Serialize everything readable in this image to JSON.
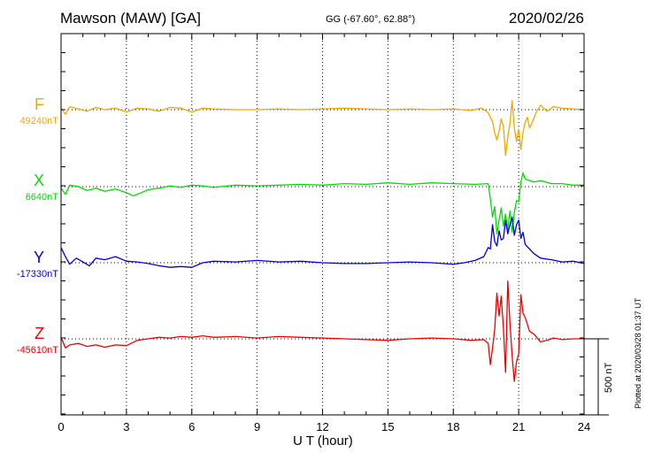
{
  "header": {
    "station": "Mawson (MAW)  [GA]",
    "coords": "GG (-67.60°,  62.88°)",
    "date": "2020/02/26"
  },
  "footer": {
    "plotted": "Plotted at 2020/03/28 01:37 UT"
  },
  "scale_bar": {
    "label": "500 nT",
    "value_nT": 500
  },
  "chart_data": {
    "type": "line",
    "title": "Mawson (MAW)  [GA]",
    "xlabel": "U T (hour)",
    "xlim": [
      0,
      24
    ],
    "xticks": [
      0,
      3,
      6,
      9,
      12,
      15,
      18,
      21,
      24
    ],
    "grid": true,
    "series": [
      {
        "name": "F",
        "baseline": "49240nT",
        "color": "#f0a800",
        "x": [
          0,
          0.2,
          0.4,
          0.8,
          1.2,
          1.6,
          2.0,
          2.5,
          3.0,
          3.5,
          4.0,
          4.5,
          5.0,
          5.5,
          6.0,
          6.5,
          7.0,
          8.0,
          9.0,
          10.0,
          11.0,
          12.0,
          13.0,
          14.0,
          15.0,
          16.0,
          17.0,
          18.0,
          18.8,
          19.3,
          19.6,
          19.8,
          19.9,
          20.0,
          20.1,
          20.2,
          20.3,
          20.4,
          20.5,
          20.6,
          20.7,
          20.8,
          20.9,
          21.0,
          21.1,
          21.2,
          21.3,
          21.4,
          21.5,
          21.6,
          21.8,
          22.0,
          22.3,
          22.6,
          23.0,
          23.5,
          24.0
        ],
        "values": [
          10,
          -30,
          20,
          5,
          -10,
          15,
          0,
          10,
          -15,
          10,
          5,
          -10,
          15,
          10,
          -15,
          10,
          5,
          0,
          0,
          5,
          0,
          5,
          10,
          5,
          0,
          5,
          0,
          5,
          -5,
          10,
          -20,
          -80,
          -150,
          -200,
          -140,
          -60,
          -110,
          -300,
          -180,
          -90,
          60,
          -120,
          -210,
          -130,
          -260,
          -150,
          -80,
          -50,
          -120,
          -90,
          -20,
          30,
          -10,
          20,
          10,
          5,
          0
        ]
      },
      {
        "name": "X",
        "baseline": "6640nT",
        "color": "#00dd00",
        "x": [
          0,
          0.2,
          0.4,
          0.8,
          1.2,
          1.6,
          2.0,
          2.5,
          3.0,
          3.3,
          3.6,
          4.0,
          4.5,
          5.0,
          5.5,
          6.0,
          6.5,
          7.0,
          8.0,
          9.0,
          10.0,
          11.0,
          12.0,
          13.0,
          14.0,
          15.0,
          16.0,
          17.0,
          18.0,
          19.0,
          19.6,
          19.7,
          19.8,
          19.9,
          20.0,
          20.1,
          20.2,
          20.3,
          20.4,
          20.5,
          20.6,
          20.7,
          20.8,
          20.9,
          21.0,
          21.1,
          21.2,
          21.3,
          21.5,
          21.7,
          22.0,
          22.5,
          23.0,
          23.5,
          24.0
        ],
        "values": [
          -10,
          -50,
          10,
          0,
          -25,
          -10,
          -30,
          -15,
          -40,
          -60,
          -45,
          -20,
          -10,
          5,
          -5,
          10,
          5,
          -5,
          10,
          5,
          10,
          15,
          10,
          20,
          15,
          25,
          15,
          25,
          20,
          15,
          20,
          -80,
          -200,
          -130,
          -310,
          -220,
          -140,
          -260,
          -180,
          -280,
          -160,
          -300,
          -170,
          -90,
          -100,
          30,
          90,
          50,
          40,
          30,
          40,
          20,
          20,
          10,
          10
        ]
      },
      {
        "name": "Y",
        "baseline": "-17330nT",
        "color": "#0000dd",
        "x": [
          0,
          0.2,
          0.4,
          0.7,
          1.0,
          1.3,
          1.6,
          2.0,
          2.5,
          3.0,
          3.5,
          4.0,
          4.5,
          5.0,
          5.5,
          6.0,
          6.5,
          7.0,
          8.0,
          9.0,
          10.0,
          11.0,
          12.0,
          13.0,
          14.0,
          15.0,
          16.0,
          17.0,
          18.0,
          18.5,
          19.0,
          19.4,
          19.6,
          19.7,
          19.8,
          19.9,
          20.0,
          20.1,
          20.2,
          20.3,
          20.4,
          20.5,
          20.6,
          20.7,
          20.8,
          20.9,
          21.0,
          21.1,
          21.2,
          21.3,
          21.5,
          21.7,
          22.0,
          22.5,
          23.0,
          23.5,
          24.0
        ],
        "values": [
          100,
          40,
          -10,
          30,
          5,
          -20,
          30,
          20,
          40,
          10,
          5,
          -5,
          -20,
          -30,
          -25,
          -30,
          0,
          10,
          5,
          15,
          5,
          10,
          0,
          -5,
          -5,
          0,
          5,
          0,
          -10,
          0,
          15,
          40,
          100,
          90,
          250,
          140,
          110,
          210,
          150,
          160,
          280,
          190,
          250,
          300,
          180,
          250,
          280,
          160,
          200,
          120,
          90,
          60,
          30,
          20,
          5,
          10,
          -5
        ]
      },
      {
        "name": "Z",
        "baseline": "-45610nT",
        "color": "#ee0000",
        "x": [
          0,
          0.2,
          0.4,
          0.8,
          1.2,
          1.6,
          2.0,
          2.5,
          3.0,
          3.5,
          4.0,
          4.5,
          5.0,
          5.5,
          6.0,
          6.5,
          7.0,
          8.0,
          9.0,
          10.0,
          11.0,
          12.0,
          13.0,
          14.0,
          15.0,
          16.0,
          17.0,
          18.0,
          18.8,
          19.4,
          19.6,
          19.7,
          19.8,
          19.9,
          20.0,
          20.1,
          20.2,
          20.3,
          20.4,
          20.5,
          20.6,
          20.7,
          20.8,
          20.9,
          21.0,
          21.1,
          21.2,
          21.3,
          21.5,
          21.7,
          22.0,
          22.3,
          22.6,
          23.0,
          23.5,
          24.0
        ],
        "values": [
          10,
          -60,
          -40,
          -30,
          -50,
          -40,
          -55,
          -40,
          -45,
          -10,
          0,
          10,
          5,
          15,
          10,
          20,
          10,
          15,
          5,
          15,
          10,
          5,
          0,
          -5,
          -10,
          0,
          5,
          0,
          -10,
          -5,
          -30,
          -170,
          -60,
          60,
          300,
          150,
          280,
          70,
          -220,
          380,
          100,
          -110,
          -280,
          -150,
          -100,
          290,
          170,
          140,
          50,
          30,
          -20,
          -10,
          5,
          -5,
          0,
          0
        ]
      }
    ],
    "legend": "left"
  }
}
